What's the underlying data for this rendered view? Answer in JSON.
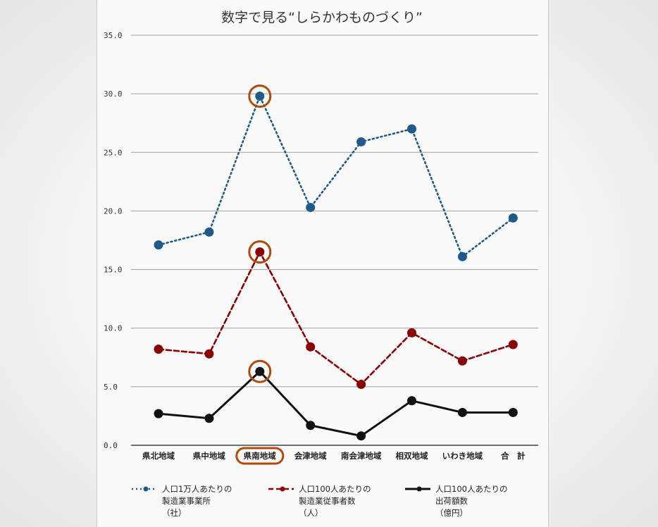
{
  "chart_data": {
    "type": "line",
    "title": "数字で見る“しらかわものづくり”",
    "categories": [
      "県北地域",
      "県中地域",
      "県南地域",
      "会津地域",
      "南会津地域",
      "相双地域",
      "いわき地域",
      "合　計"
    ],
    "ylim": [
      0,
      35
    ],
    "yticks": [
      "0.0",
      "5.0",
      "10.0",
      "15.0",
      "20.0",
      "25.0",
      "30.0",
      "35.0"
    ],
    "grid": true,
    "legend": "bottom",
    "highlight_category": "県南地域",
    "highlight_color": "#b24a0c",
    "series": [
      {
        "name": "人口1万人あたりの\n製造業事業所\n（社）",
        "color": "#1f5a8a",
        "style": "dotted",
        "values": [
          17.1,
          18.2,
          29.8,
          20.3,
          25.9,
          27.0,
          16.1,
          19.4
        ]
      },
      {
        "name": "人口100人あたりの\n製造業従事者数\n（人）",
        "color": "#8b0000",
        "style": "dashed",
        "values": [
          8.2,
          7.8,
          16.5,
          8.4,
          5.2,
          9.6,
          7.2,
          8.6
        ]
      },
      {
        "name": "人口100人あたりの\n出荷額数\n（億円）",
        "color": "#111111",
        "style": "solid",
        "values": [
          2.7,
          2.3,
          6.3,
          1.7,
          0.8,
          3.8,
          2.8,
          2.8
        ]
      }
    ]
  }
}
